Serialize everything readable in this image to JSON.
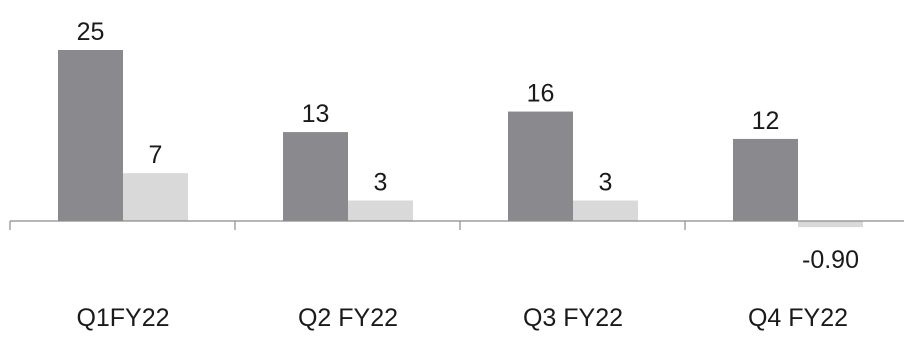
{
  "chart_data": {
    "type": "bar",
    "categories": [
      "Q1FY22",
      "Q2 FY22",
      "Q3 FY22",
      "Q4 FY22"
    ],
    "series": [
      {
        "values": [
          25,
          13,
          16,
          12
        ],
        "labels": [
          "25",
          "13",
          "16",
          "12"
        ],
        "color": "#8a8a8e"
      },
      {
        "values": [
          7,
          3,
          3,
          -0.9
        ],
        "labels": [
          "7",
          "3",
          "3",
          "-0.90"
        ],
        "color": "#d9d9d9"
      }
    ],
    "title": "",
    "xlabel": "",
    "ylabel": "",
    "ylim": [
      -1,
      26
    ],
    "grid": false,
    "legend": "none"
  }
}
